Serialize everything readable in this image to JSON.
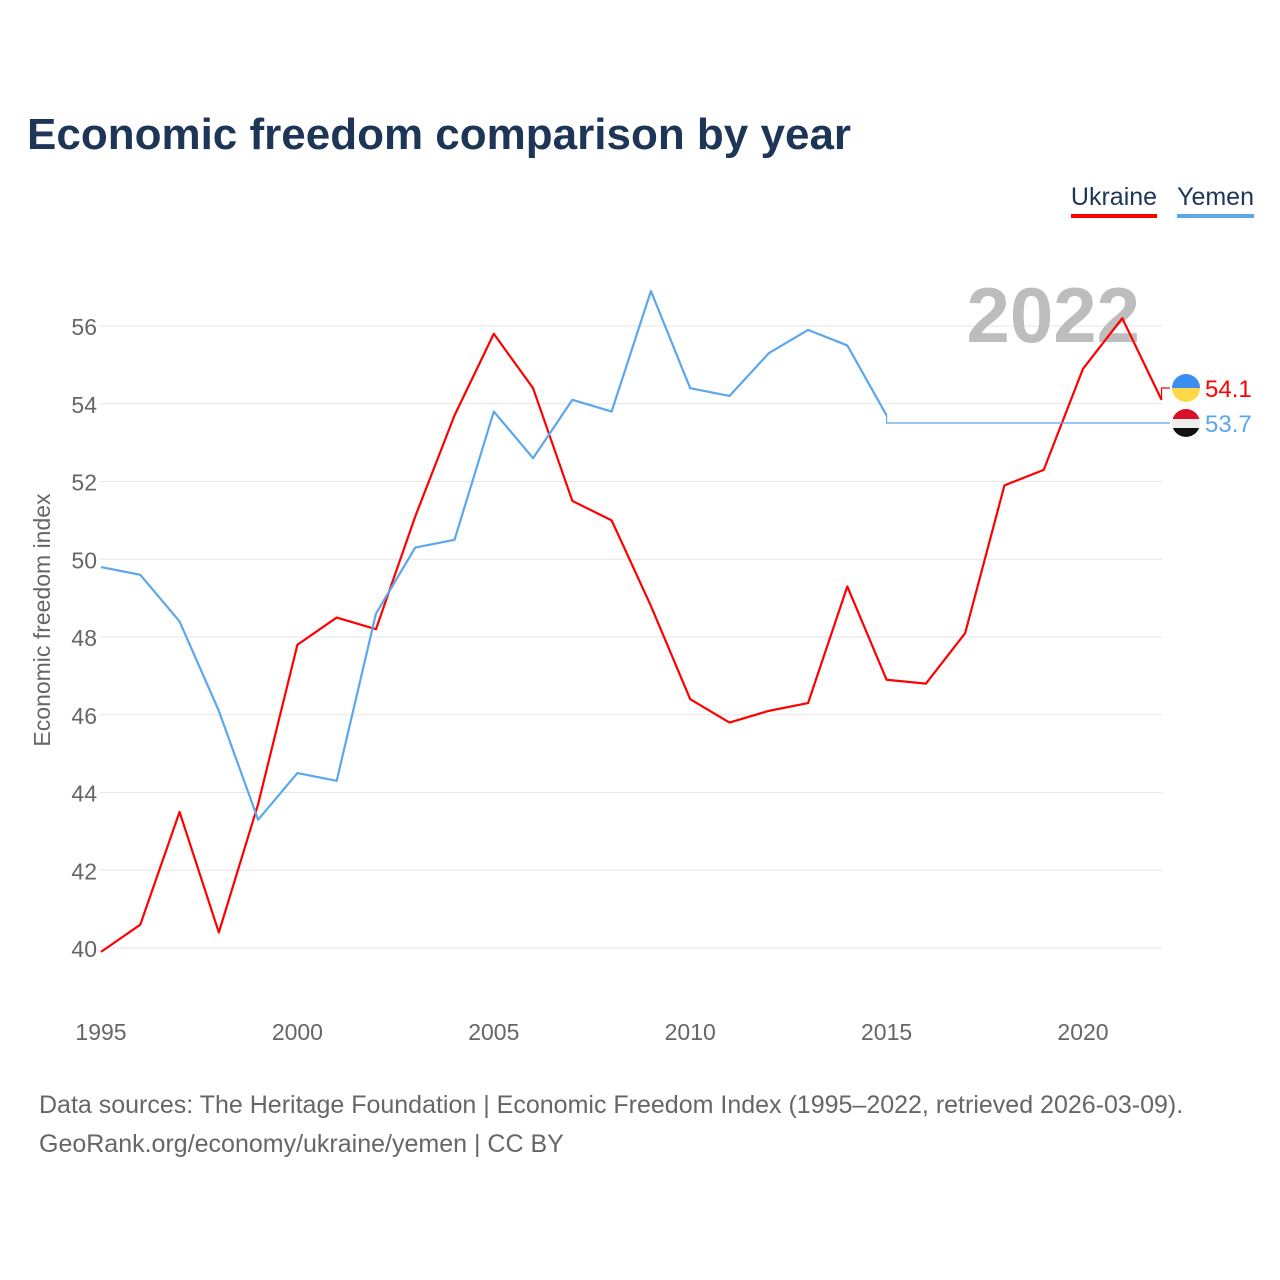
{
  "title": "Economic freedom comparison by year",
  "footer": {
    "line1": "Data sources: The Heritage Foundation | Economic Freedom Index (1995–2022, retrieved 2026-03-09).",
    "line2": "GeoRank.org/economy/ukraine/yemen | CC BY"
  },
  "chart_data": {
    "type": "line",
    "title": "Economic freedom comparison by year",
    "xlabel": "",
    "ylabel": "Economic freedom index",
    "xlim": [
      1995,
      2022
    ],
    "ylim": [
      39,
      57.5
    ],
    "xticks": [
      1995,
      2000,
      2005,
      2010,
      2015,
      2020
    ],
    "yticks": [
      40,
      42,
      44,
      46,
      48,
      50,
      52,
      54,
      56
    ],
    "grid": true,
    "legend_placement": "top-right",
    "year_label": "2022",
    "x": [
      1995,
      1996,
      1997,
      1998,
      1999,
      2000,
      2001,
      2002,
      2003,
      2004,
      2005,
      2006,
      2007,
      2008,
      2009,
      2010,
      2011,
      2012,
      2013,
      2014,
      2015,
      2016,
      2017,
      2018,
      2019,
      2020,
      2021,
      2022
    ],
    "series": [
      {
        "name": "Ukraine",
        "color": "#ff0000",
        "end_label": "54.1",
        "values": [
          39.9,
          40.6,
          43.5,
          40.4,
          43.7,
          47.8,
          48.5,
          48.2,
          51.1,
          53.7,
          55.8,
          54.4,
          51.5,
          51.0,
          48.8,
          46.4,
          45.8,
          46.1,
          46.3,
          49.3,
          46.9,
          46.8,
          48.1,
          51.9,
          52.3,
          54.9,
          56.2,
          54.1
        ]
      },
      {
        "name": "Yemen",
        "color": "#5ba7ee",
        "end_label": "53.7",
        "values": [
          49.8,
          49.6,
          48.4,
          46.1,
          43.3,
          44.5,
          44.3,
          48.6,
          50.3,
          50.5,
          53.8,
          52.6,
          54.1,
          53.8,
          56.9,
          54.4,
          54.2,
          55.3,
          55.9,
          55.5,
          53.7,
          null,
          null,
          null,
          null,
          null,
          null,
          null
        ]
      }
    ]
  }
}
